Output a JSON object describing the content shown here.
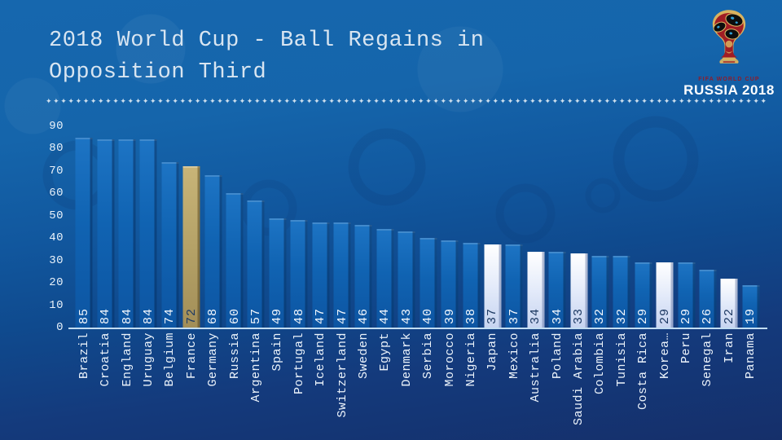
{
  "slide": {
    "title_lines": [
      "2018 World Cup - Ball Regains in",
      "Opposition Third"
    ],
    "divider_char": "✦",
    "divider_repeat": 120,
    "colors": {
      "background_top": "#1667ae",
      "background_bottom": "#152f6a",
      "title_text": "#d8e5f1",
      "bar_blue": "#1063b2",
      "bar_gold": "#b5a267",
      "bar_light": "#dfe8fa",
      "axis_line": "#c2ddf2"
    },
    "logo": {
      "caption_top": "FIFA WORLD CUP",
      "caption_bottom": "RUSSIA 2018"
    }
  },
  "chart_data": {
    "type": "bar",
    "title": "2018 World Cup - Ball Regains in Opposition Third",
    "xlabel": "",
    "ylabel": "",
    "ylim": [
      0,
      90
    ],
    "yticks": [
      0,
      10,
      20,
      30,
      40,
      50,
      60,
      70,
      80,
      90
    ],
    "grid": false,
    "legend": null,
    "bar_label_position": "inside-bottom",
    "categories": [
      "Brazil",
      "Croatia",
      "England",
      "Uruguay",
      "Belgium",
      "France",
      "Germany",
      "Russia",
      "Argentina",
      "Spain",
      "Portugal",
      "Iceland",
      "Switzerland",
      "Sweden",
      "Egypt",
      "Denmark",
      "Serbia",
      "Morocco",
      "Nigeria",
      "Japan",
      "Mexico",
      "Australia",
      "Poland",
      "Saudi Arabia",
      "Colombia",
      "Tunisia",
      "Costa Rica",
      "Korea…",
      "Peru",
      "Senegal",
      "Iran",
      "Panama"
    ],
    "values": [
      85,
      84,
      84,
      84,
      74,
      72,
      68,
      60,
      57,
      49,
      48,
      47,
      47,
      46,
      44,
      43,
      40,
      39,
      38,
      37,
      37,
      34,
      34,
      33,
      32,
      32,
      29,
      29,
      29,
      26,
      22,
      19
    ],
    "highlight": {
      "gold_index": 5,
      "light_indices": [
        19,
        21,
        23,
        27,
        30
      ]
    }
  }
}
